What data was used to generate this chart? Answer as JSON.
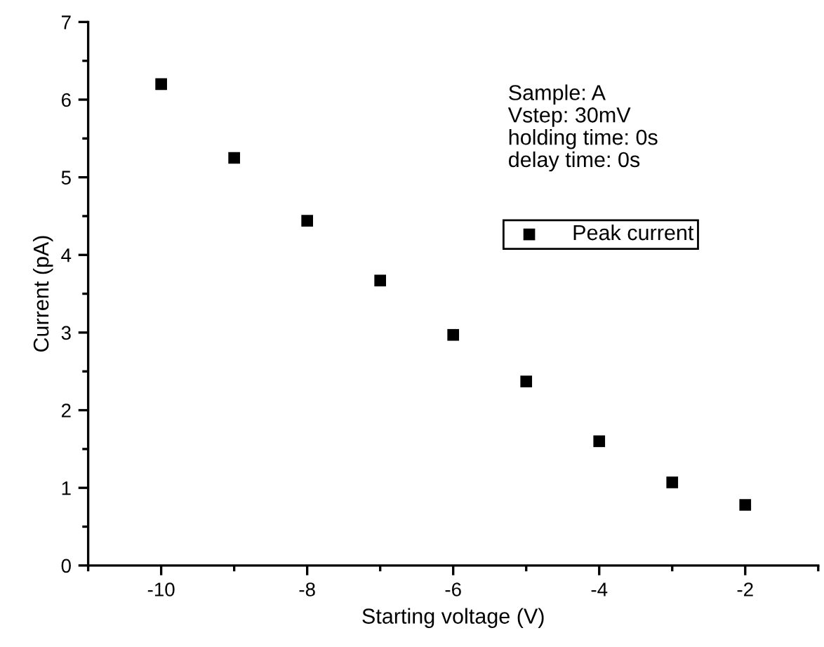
{
  "chart_data": {
    "type": "scatter",
    "xlabel": "Starting voltage (V)",
    "ylabel": "Current (pA)",
    "x": [
      -10,
      -9,
      -8,
      -7,
      -6,
      -5,
      -4,
      -3,
      -2
    ],
    "series": [
      {
        "name": "Peak current",
        "color": "#000000",
        "values": [
          6.2,
          5.25,
          4.44,
          3.67,
          2.97,
          2.37,
          1.6,
          1.07,
          0.78
        ]
      }
    ],
    "xlim": [
      -11,
      -1
    ],
    "xticks": [
      -10,
      -8,
      -6,
      -4,
      -2
    ],
    "ylim": [
      0,
      7
    ],
    "yticks": [
      0,
      1,
      2,
      3,
      4,
      5,
      6,
      7
    ],
    "marker": "square",
    "legend": "top right",
    "grid": false,
    "annotations": [
      "Sample: A\nVstep: 30mV\nholding time: 0s\ndelay time: 0s"
    ]
  }
}
